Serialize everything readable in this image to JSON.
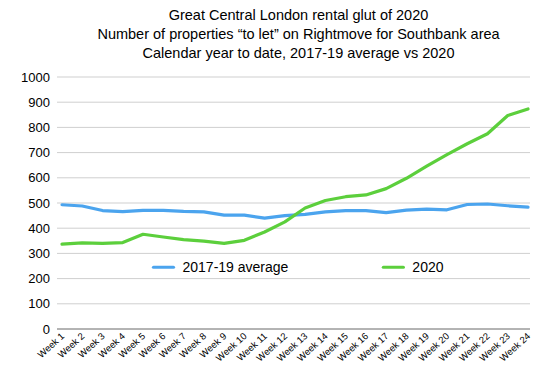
{
  "chart_data": {
    "type": "line",
    "title": "Great Central London rental glut of 2020",
    "subtitle": [
      "Number of properties “to let” on Rightmove for Southbank area",
      "Calendar year to date, 2017-19 average vs 2020"
    ],
    "categories": [
      "Week 1",
      "Week 2",
      "Week 3",
      "Week 4",
      "Week 5",
      "Week 6",
      "Week 7",
      "Week 8",
      "Week 9",
      "Week 10",
      "Week 11",
      "Week 12",
      "Week 13",
      "Week 14",
      "Week 15",
      "Week 16",
      "Week 17",
      "Week 18",
      "Week 19",
      "Week 20",
      "Week 21",
      "Week 22",
      "Week 23",
      "Week 24"
    ],
    "series": [
      {
        "name": "2017-19 average",
        "color": "#4ba4ee",
        "values": [
          493,
          488,
          470,
          466,
          471,
          471,
          467,
          465,
          452,
          452,
          440,
          450,
          455,
          465,
          470,
          470,
          462,
          472,
          476,
          473,
          494,
          496,
          489,
          484
        ]
      },
      {
        "name": "2020",
        "color": "#5ccf3c",
        "values": [
          337,
          342,
          340,
          343,
          376,
          365,
          355,
          349,
          340,
          352,
          385,
          425,
          480,
          510,
          525,
          532,
          557,
          598,
          646,
          692,
          735,
          775,
          847,
          873
        ]
      }
    ],
    "ylim": [
      0,
      1000
    ],
    "yticks": [
      0,
      100,
      200,
      300,
      400,
      500,
      600,
      700,
      800,
      900,
      1000
    ],
    "grid": true,
    "legend": "bottom"
  }
}
